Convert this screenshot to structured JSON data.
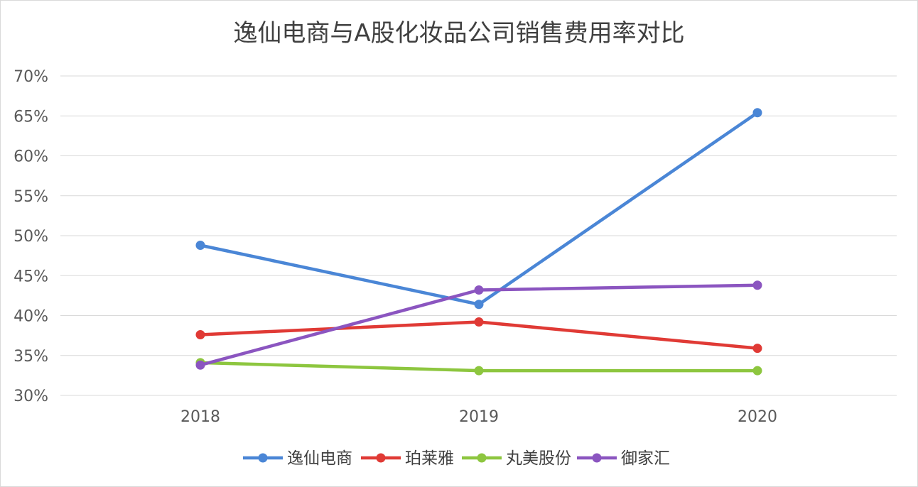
{
  "chart_data": {
    "type": "line",
    "title": "逸仙电商与A股化妆品公司销售费用率对比",
    "xlabel": "",
    "ylabel": "",
    "categories": [
      "2018",
      "2019",
      "2020"
    ],
    "ylim": [
      30,
      70
    ],
    "yticks": [
      30,
      35,
      40,
      45,
      50,
      55,
      60,
      65,
      70
    ],
    "ytick_labels": [
      "30%",
      "35%",
      "40%",
      "45%",
      "50%",
      "55%",
      "60%",
      "65%",
      "70%"
    ],
    "grid": true,
    "legend_position": "bottom",
    "series": [
      {
        "name": "逸仙电商",
        "color": "#4a86d6",
        "values": [
          48.8,
          41.4,
          65.4
        ]
      },
      {
        "name": "珀莱雅",
        "color": "#e03a35",
        "values": [
          37.6,
          39.2,
          35.9
        ]
      },
      {
        "name": "丸美股份",
        "color": "#8dc63f",
        "values": [
          34.1,
          33.1,
          33.1
        ]
      },
      {
        "name": "御家汇",
        "color": "#8b55c0",
        "values": [
          33.8,
          43.2,
          43.8
        ]
      }
    ]
  }
}
